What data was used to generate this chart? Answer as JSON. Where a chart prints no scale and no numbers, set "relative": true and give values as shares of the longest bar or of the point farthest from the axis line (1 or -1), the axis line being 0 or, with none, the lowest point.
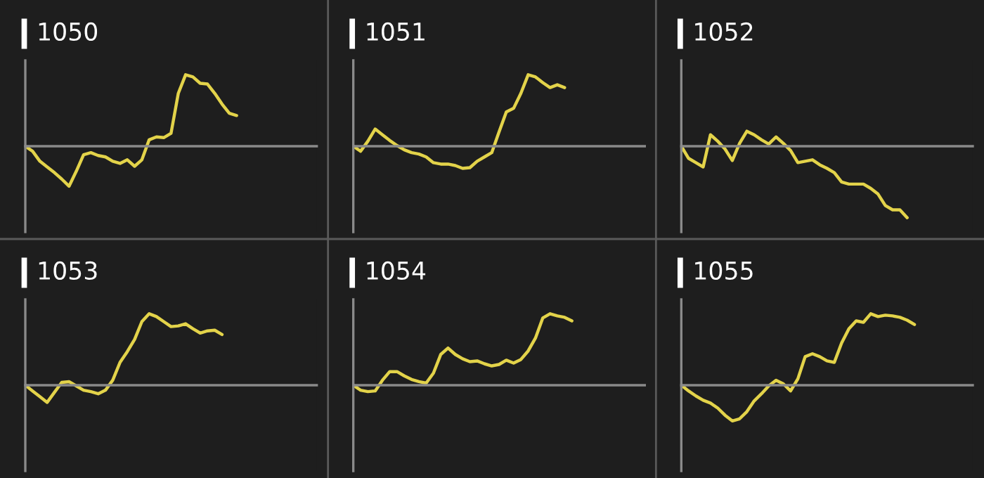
{
  "chart_data": [
    {
      "type": "line",
      "title": "1050",
      "relative": true,
      "color": "#e3d34a",
      "categories": [
        null,
        null,
        null,
        null,
        null,
        null,
        null,
        null,
        null,
        null,
        null,
        null,
        null,
        null,
        null,
        null,
        null,
        null,
        null,
        null,
        null,
        null,
        null,
        null,
        null,
        null,
        null,
        null,
        null,
        null,
        null,
        null,
        null,
        null,
        null,
        null,
        null,
        null,
        null,
        null
      ],
      "values": [
        0,
        -0.07,
        -0.21,
        -0.29,
        -0.37,
        -0.46,
        -0.56,
        -0.35,
        -0.12,
        -0.09,
        -0.13,
        -0.15,
        -0.21,
        -0.24,
        -0.19,
        -0.28,
        -0.19,
        0.09,
        0.13,
        0.12,
        0.18,
        0.74,
        1,
        0.97,
        0.88,
        0.87,
        0.74,
        0.59,
        0.46,
        0.43,
        null,
        null,
        null,
        null,
        null,
        null,
        null,
        null,
        null,
        null
      ]
    },
    {
      "type": "line",
      "title": "1051",
      "relative": true,
      "color": "#e3d34a",
      "categories": [
        null,
        null,
        null,
        null,
        null,
        null,
        null,
        null,
        null,
        null,
        null,
        null,
        null,
        null,
        null,
        null,
        null,
        null,
        null,
        null,
        null,
        null,
        null,
        null,
        null,
        null,
        null,
        null,
        null,
        null,
        null,
        null,
        null,
        null,
        null,
        null,
        null,
        null,
        null,
        null
      ],
      "values": [
        0,
        -0.07,
        0.07,
        0.24,
        0.16,
        0.08,
        0.01,
        -0.05,
        -0.09,
        -0.11,
        -0.15,
        -0.23,
        -0.25,
        -0.25,
        -0.27,
        -0.31,
        -0.3,
        -0.21,
        -0.15,
        -0.09,
        0.2,
        0.48,
        0.53,
        0.74,
        1,
        0.97,
        0.89,
        0.82,
        0.86,
        0.82,
        null,
        null,
        null,
        null,
        null,
        null,
        null,
        null,
        null,
        null
      ]
    },
    {
      "type": "line",
      "title": "1052",
      "relative": true,
      "color": "#e3d34a",
      "categories": [
        null,
        null,
        null,
        null,
        null,
        null,
        null,
        null,
        null,
        null,
        null,
        null,
        null,
        null,
        null,
        null,
        null,
        null,
        null,
        null,
        null,
        null,
        null,
        null,
        null,
        null,
        null,
        null,
        null,
        null,
        null,
        null,
        null,
        null,
        null,
        null,
        null,
        null,
        null,
        null
      ],
      "values": [
        0,
        -0.17,
        -0.23,
        -0.29,
        0.16,
        0.07,
        -0.04,
        -0.2,
        0.04,
        0.21,
        0.16,
        0.09,
        0.03,
        0.13,
        0.04,
        -0.06,
        -0.23,
        -0.21,
        -0.19,
        -0.26,
        -0.31,
        -0.37,
        -0.5,
        -0.53,
        -0.53,
        -0.53,
        -0.59,
        -0.67,
        -0.83,
        -0.89,
        -0.89,
        -1,
        null,
        null,
        null,
        null,
        null,
        null,
        null,
        null
      ]
    },
    {
      "type": "line",
      "title": "1053",
      "relative": true,
      "color": "#e3d34a",
      "categories": [
        null,
        null,
        null,
        null,
        null,
        null,
        null,
        null,
        null,
        null,
        null,
        null,
        null,
        null,
        null,
        null,
        null,
        null,
        null,
        null,
        null,
        null,
        null,
        null,
        null,
        null,
        null,
        null,
        null,
        null,
        null,
        null,
        null,
        null,
        null,
        null,
        null,
        null,
        null,
        null
      ],
      "values": [
        0,
        -0.08,
        -0.16,
        -0.24,
        -0.1,
        0.04,
        0.05,
        -0.01,
        -0.07,
        -0.09,
        -0.12,
        -0.07,
        0.07,
        0.32,
        0.47,
        0.64,
        0.89,
        1,
        0.96,
        0.89,
        0.82,
        0.83,
        0.86,
        0.79,
        0.73,
        0.76,
        0.77,
        0.71,
        null,
        null,
        null,
        null,
        null,
        null,
        null,
        null,
        null,
        null,
        null,
        null
      ]
    },
    {
      "type": "line",
      "title": "1054",
      "relative": true,
      "color": "#e3d34a",
      "categories": [
        null,
        null,
        null,
        null,
        null,
        null,
        null,
        null,
        null,
        null,
        null,
        null,
        null,
        null,
        null,
        null,
        null,
        null,
        null,
        null,
        null,
        null,
        null,
        null,
        null,
        null,
        null,
        null,
        null,
        null,
        null,
        null,
        null,
        null,
        null,
        null,
        null,
        null,
        null,
        null
      ],
      "values": [
        0,
        -0.07,
        -0.09,
        -0.08,
        0.07,
        0.19,
        0.19,
        0.13,
        0.08,
        0.05,
        0.03,
        0.17,
        0.43,
        0.52,
        0.43,
        0.37,
        0.33,
        0.34,
        0.3,
        0.27,
        0.29,
        0.35,
        0.31,
        0.36,
        0.48,
        0.66,
        0.94,
        1,
        0.97,
        0.95,
        0.9,
        null,
        null,
        null,
        null,
        null,
        null,
        null,
        null,
        null
      ]
    },
    {
      "type": "line",
      "title": "1055",
      "relative": true,
      "color": "#e3d34a",
      "categories": [
        null,
        null,
        null,
        null,
        null,
        null,
        null,
        null,
        null,
        null,
        null,
        null,
        null,
        null,
        null,
        null,
        null,
        null,
        null,
        null,
        null,
        null,
        null,
        null,
        null,
        null,
        null,
        null,
        null,
        null,
        null,
        null,
        null,
        null,
        null,
        null,
        null,
        null,
        null,
        null
      ],
      "values": [
        0,
        -0.08,
        -0.15,
        -0.21,
        -0.25,
        -0.32,
        -0.42,
        -0.5,
        -0.47,
        -0.37,
        -0.22,
        -0.12,
        -0.01,
        0.07,
        0.02,
        -0.08,
        0.09,
        0.4,
        0.44,
        0.4,
        0.34,
        0.32,
        0.59,
        0.79,
        0.9,
        0.88,
        1,
        0.96,
        0.98,
        0.97,
        0.95,
        0.91,
        0.85,
        null,
        null,
        null,
        null,
        null,
        null,
        null
      ]
    }
  ]
}
